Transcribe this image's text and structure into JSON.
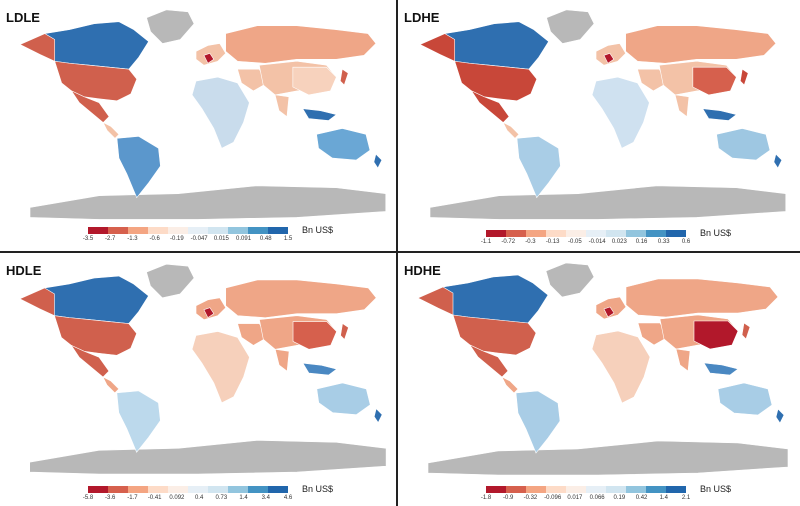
{
  "panels": [
    {
      "title": "LDLE",
      "unit": "Bn US$",
      "legend_values": [
        "-3.5",
        "-2.7",
        "-1.3",
        "-0.6",
        "-0.19",
        "-0.047",
        "0.015",
        "0.091",
        "0.48",
        "1.5"
      ],
      "colors": {
        "north_america": "#2f6fb0",
        "usa": "#d0604d",
        "south_america": "#5b97cc",
        "europe_hot": "#b2182b",
        "russia": "#efa687",
        "africa": "#c9dcec",
        "asia": "#f3c2a7",
        "china": "#f7d2bd",
        "australia": "#6aa7d5",
        "indonesia": "#2f6fb0",
        "greenland": "#b8b8b8",
        "antarctica": "#b8b8b8"
      }
    },
    {
      "title": "LDHE",
      "unit": "Bn US$",
      "legend_values": [
        "-1.1",
        "-0.72",
        "-0.3",
        "-0.13",
        "-0.05",
        "-0.014",
        "0.023",
        "0.16",
        "0.33",
        "0.6"
      ],
      "colors": {
        "north_america": "#2f6fb0",
        "usa": "#c84739",
        "south_america": "#a9cde6",
        "europe_hot": "#b2182b",
        "russia": "#efa687",
        "africa": "#cfe1f0",
        "asia": "#f3c2a7",
        "china": "#d6604d",
        "australia": "#9ec7e2",
        "indonesia": "#2f6fb0",
        "greenland": "#b8b8b8",
        "antarctica": "#b8b8b8"
      }
    },
    {
      "title": "HDLE",
      "unit": "Bn US$",
      "legend_values": [
        "-5.8",
        "-3.6",
        "-1.7",
        "-0.41",
        "0.092",
        "0.4",
        "0.73",
        "1.4",
        "3.4",
        "4.6"
      ],
      "colors": {
        "north_america": "#2f6fb0",
        "usa": "#d0604d",
        "south_america": "#bcd9ec",
        "europe_hot": "#b2182b",
        "russia": "#efa687",
        "africa": "#f6d0bb",
        "asia": "#efa687",
        "china": "#d6604d",
        "australia": "#a8cde6",
        "indonesia": "#4a88c2",
        "greenland": "#b8b8b8",
        "antarctica": "#b8b8b8"
      }
    },
    {
      "title": "HDHE",
      "unit": "Bn US$",
      "legend_values": [
        "-1.8",
        "-0.9",
        "-0.32",
        "-0.096",
        "0.017",
        "0.066",
        "0.19",
        "0.42",
        "1.4",
        "2.1"
      ],
      "colors": {
        "north_america": "#2f6fb0",
        "usa": "#d0604d",
        "south_america": "#a9cde6",
        "europe_hot": "#b2182b",
        "russia": "#efa687",
        "africa": "#f6d0bb",
        "asia": "#efa687",
        "china": "#b2182b",
        "australia": "#a8cde6",
        "indonesia": "#4a88c2",
        "greenland": "#b8b8b8",
        "antarctica": "#b8b8b8"
      }
    }
  ],
  "ramp": [
    "#b2182b",
    "#d6604d",
    "#f4a582",
    "#fddbc7",
    "#fbeee6",
    "#e6eff6",
    "#d1e5f0",
    "#92c5de",
    "#4393c3",
    "#2166ac"
  ]
}
